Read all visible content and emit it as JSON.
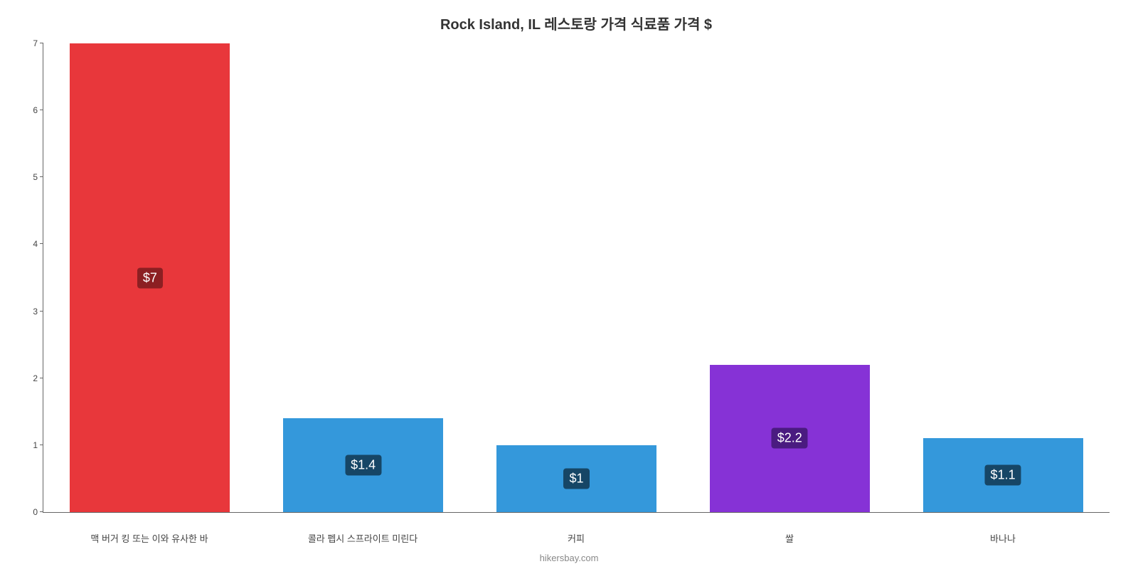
{
  "chart": {
    "type": "bar",
    "title": "Rock Island, IL 레스토랑 가격 식료품 가격 $",
    "title_fontsize": 20,
    "title_color": "#333333",
    "background_color": "#ffffff",
    "axis_color": "#666666",
    "ylim": [
      0,
      7
    ],
    "ytick_step": 1,
    "yticks": [
      0,
      1,
      2,
      3,
      4,
      5,
      6,
      7
    ],
    "ytick_fontsize": 12,
    "bar_width_pct": 75,
    "categories": [
      "맥 버거 킹 또는 이와 유사한 바",
      "콜라 펩시 스프라이트 미린다",
      "커피",
      "쌀",
      "바나나"
    ],
    "values": [
      7,
      1.4,
      1,
      2.2,
      1.1
    ],
    "value_labels": [
      "$7",
      "$1.4",
      "$1",
      "$2.2",
      "$1.1"
    ],
    "bar_colors": [
      "#e8373b",
      "#3498db",
      "#3498db",
      "#8632d6",
      "#3498db"
    ],
    "badge_bg_colors": [
      "#8c1f22",
      "#164666",
      "#164666",
      "#4a1b80",
      "#164666"
    ],
    "badge_fontsize": 18,
    "xlabel_fontsize": 13,
    "xlabel_color": "#444444",
    "source_text": "hikersbay.com",
    "source_fontsize": 13,
    "source_color": "#888888"
  }
}
